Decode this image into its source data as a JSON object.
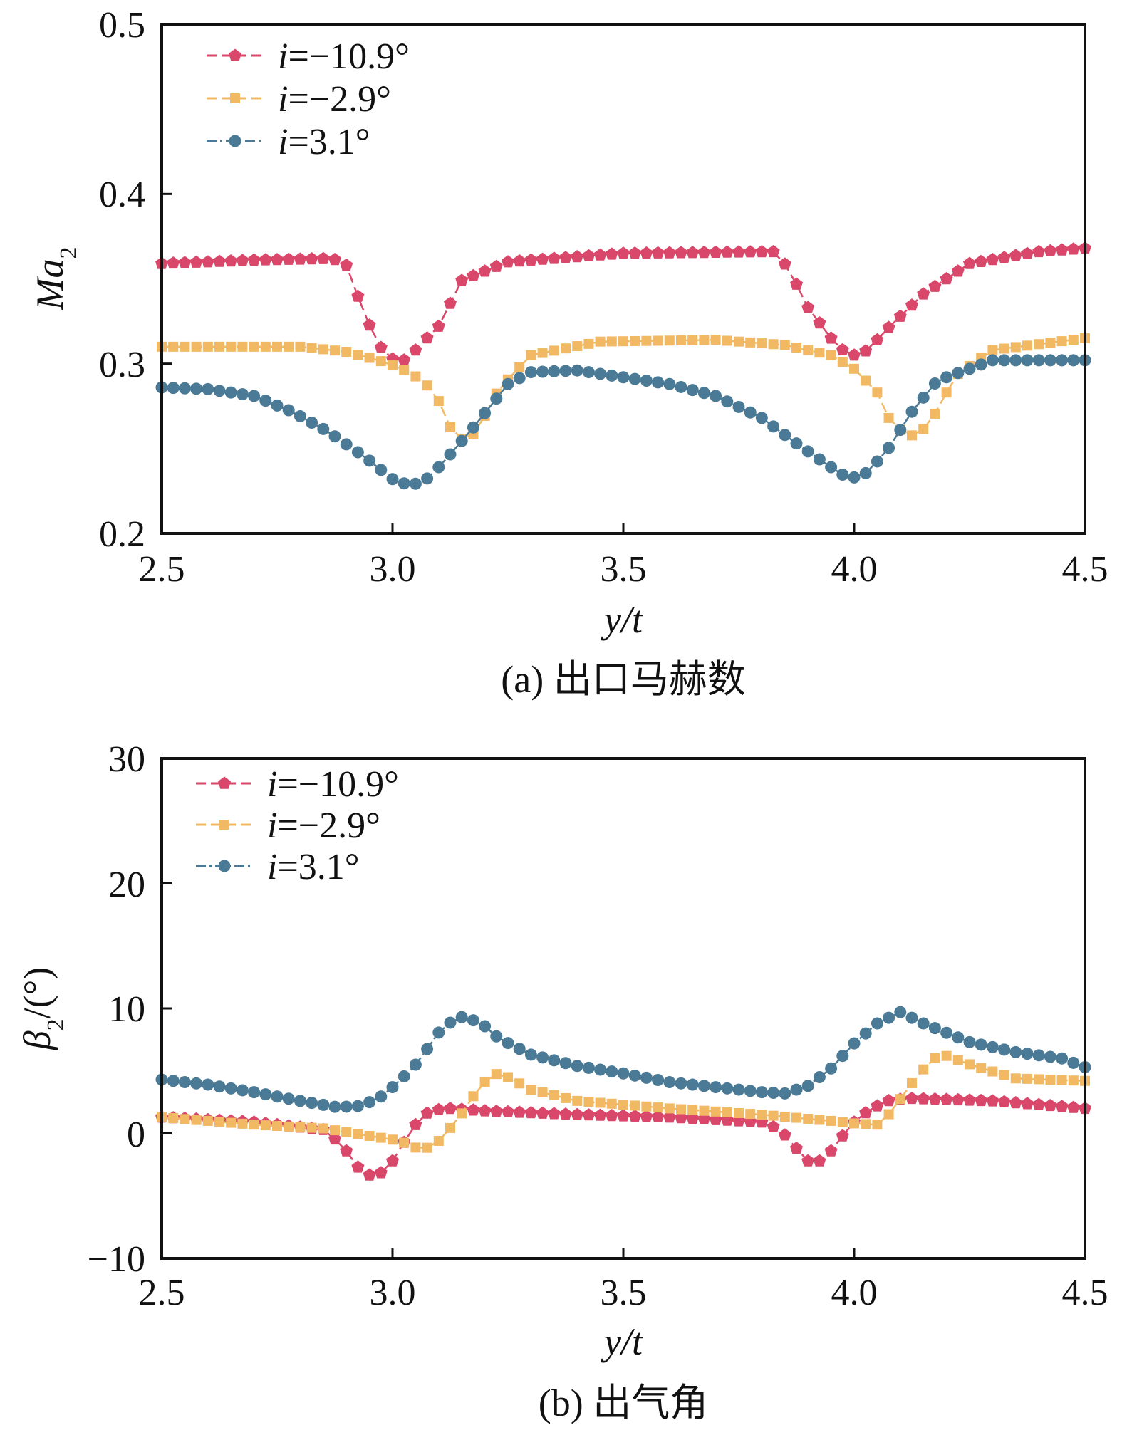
{
  "figure": {
    "series_names": [
      "i=−10.9°",
      "i=−2.9°",
      "i=3.1°"
    ],
    "legend_symbols": {
      "italic_letter": "i",
      "rest": [
        "=−10.9°",
        "=−2.9°",
        "=3.1°"
      ]
    },
    "colors": {
      "s1": "#d9486a",
      "s2": "#f2b965",
      "s3": "#4a7a95"
    }
  },
  "chart_data": [
    {
      "type": "line",
      "caption": "(a) 出口马赫数",
      "xlabel": "y/t",
      "ylabel": {
        "main": "Ma",
        "sub": "2"
      },
      "xlim": [
        2.5,
        4.5
      ],
      "ylim": [
        0.2,
        0.5
      ],
      "xticks": [
        "2.5",
        "3.0",
        "3.5",
        "4.0",
        "4.5"
      ],
      "yticks": [
        "0.2",
        "0.3",
        "0.4",
        "0.5"
      ],
      "legend": "top-left",
      "grid": false,
      "series": [
        {
          "name": "i=−10.9°",
          "marker": "pentagon",
          "points": [
            [
              2.5,
              0.359
            ],
            [
              2.7,
              0.361
            ],
            [
              2.87,
              0.362
            ],
            [
              2.9,
              0.358
            ],
            [
              2.93,
              0.336
            ],
            [
              2.96,
              0.316
            ],
            [
              2.99,
              0.303
            ],
            [
              3.03,
              0.302
            ],
            [
              3.06,
              0.311
            ],
            [
              3.1,
              0.322
            ],
            [
              3.15,
              0.349
            ],
            [
              3.25,
              0.36
            ],
            [
              3.5,
              0.365
            ],
            [
              3.83,
              0.366
            ],
            [
              3.86,
              0.355
            ],
            [
              3.9,
              0.333
            ],
            [
              3.95,
              0.315
            ],
            [
              3.99,
              0.304
            ],
            [
              4.03,
              0.308
            ],
            [
              4.07,
              0.32
            ],
            [
              4.15,
              0.341
            ],
            [
              4.25,
              0.359
            ],
            [
              4.4,
              0.366
            ],
            [
              4.5,
              0.368
            ]
          ]
        },
        {
          "name": "i=−2.9°",
          "marker": "square",
          "points": [
            [
              2.5,
              0.31
            ],
            [
              2.8,
              0.31
            ],
            [
              2.9,
              0.307
            ],
            [
              2.97,
              0.302
            ],
            [
              3.03,
              0.296
            ],
            [
              3.07,
              0.289
            ],
            [
              3.1,
              0.278
            ],
            [
              3.12,
              0.264
            ],
            [
              3.16,
              0.253
            ],
            [
              3.19,
              0.264
            ],
            [
              3.23,
              0.285
            ],
            [
              3.3,
              0.305
            ],
            [
              3.45,
              0.313
            ],
            [
              3.7,
              0.314
            ],
            [
              3.85,
              0.311
            ],
            [
              3.95,
              0.305
            ],
            [
              4.0,
              0.297
            ],
            [
              4.05,
              0.283
            ],
            [
              4.08,
              0.265
            ],
            [
              4.12,
              0.257
            ],
            [
              4.16,
              0.263
            ],
            [
              4.22,
              0.293
            ],
            [
              4.3,
              0.308
            ],
            [
              4.5,
              0.315
            ]
          ]
        },
        {
          "name": "i=3.1°",
          "marker": "circle",
          "points": [
            [
              2.5,
              0.286
            ],
            [
              2.6,
              0.285
            ],
            [
              2.7,
              0.281
            ],
            [
              2.78,
              0.272
            ],
            [
              2.86,
              0.26
            ],
            [
              2.94,
              0.245
            ],
            [
              3.0,
              0.232
            ],
            [
              3.04,
              0.228
            ],
            [
              3.08,
              0.233
            ],
            [
              3.12,
              0.245
            ],
            [
              3.18,
              0.264
            ],
            [
              3.25,
              0.288
            ],
            [
              3.3,
              0.295
            ],
            [
              3.4,
              0.296
            ],
            [
              3.5,
              0.292
            ],
            [
              3.6,
              0.288
            ],
            [
              3.7,
              0.281
            ],
            [
              3.8,
              0.268
            ],
            [
              3.88,
              0.252
            ],
            [
              3.95,
              0.239
            ],
            [
              3.99,
              0.232
            ],
            [
              4.03,
              0.236
            ],
            [
              4.08,
              0.252
            ],
            [
              4.12,
              0.27
            ],
            [
              4.18,
              0.29
            ],
            [
              4.3,
              0.302
            ],
            [
              4.5,
              0.302
            ]
          ]
        }
      ]
    },
    {
      "type": "line",
      "caption": "(b) 出气角",
      "xlabel": "y/t",
      "ylabel": {
        "main": "β",
        "sub": "2",
        "suffix": "/(°)"
      },
      "xlim": [
        2.5,
        4.5
      ],
      "ylim": [
        -10,
        30
      ],
      "xticks": [
        "2.5",
        "3.0",
        "3.5",
        "4.0",
        "4.5"
      ],
      "yticks": [
        "−10",
        "0",
        "10",
        "20",
        "30"
      ],
      "legend": "top-left",
      "grid": false,
      "series": [
        {
          "name": "i=−10.9°",
          "marker": "pentagon",
          "points": [
            [
              2.5,
              1.3
            ],
            [
              2.7,
              0.9
            ],
            [
              2.85,
              0.3
            ],
            [
              2.88,
              -0.6
            ],
            [
              2.91,
              -1.8
            ],
            [
              2.93,
              -3.0
            ],
            [
              2.96,
              -3.5
            ],
            [
              2.99,
              -2.8
            ],
            [
              3.02,
              -1.0
            ],
            [
              3.05,
              0.7
            ],
            [
              3.08,
              1.8
            ],
            [
              3.12,
              2.0
            ],
            [
              3.2,
              1.8
            ],
            [
              3.4,
              1.5
            ],
            [
              3.6,
              1.3
            ],
            [
              3.8,
              0.9
            ],
            [
              3.84,
              0.3
            ],
            [
              3.87,
              -1.0
            ],
            [
              3.9,
              -2.2
            ],
            [
              3.93,
              -2.2
            ],
            [
              3.96,
              -1.0
            ],
            [
              3.99,
              0.6
            ],
            [
              4.03,
              1.8
            ],
            [
              4.07,
              2.6
            ],
            [
              4.12,
              2.8
            ],
            [
              4.3,
              2.6
            ],
            [
              4.5,
              2.0
            ]
          ]
        },
        {
          "name": "i=−2.9°",
          "marker": "square",
          "points": [
            [
              2.5,
              1.3
            ],
            [
              2.7,
              0.7
            ],
            [
              2.85,
              0.4
            ],
            [
              2.95,
              -0.2
            ],
            [
              3.0,
              -0.5
            ],
            [
              3.03,
              -0.8
            ],
            [
              3.06,
              -1.3
            ],
            [
              3.09,
              -1.0
            ],
            [
              3.12,
              0.2
            ],
            [
              3.15,
              1.6
            ],
            [
              3.19,
              3.8
            ],
            [
              3.22,
              4.8
            ],
            [
              3.25,
              4.5
            ],
            [
              3.3,
              3.5
            ],
            [
              3.4,
              2.6
            ],
            [
              3.6,
              2.0
            ],
            [
              3.8,
              1.5
            ],
            [
              3.95,
              1.0
            ],
            [
              4.0,
              0.8
            ],
            [
              4.05,
              0.7
            ],
            [
              4.08,
              1.7
            ],
            [
              4.12,
              3.8
            ],
            [
              4.17,
              6.0
            ],
            [
              4.2,
              6.2
            ],
            [
              4.26,
              5.4
            ],
            [
              4.35,
              4.4
            ],
            [
              4.5,
              4.2
            ]
          ]
        },
        {
          "name": "i=3.1°",
          "marker": "circle",
          "points": [
            [
              2.5,
              4.3
            ],
            [
              2.6,
              3.9
            ],
            [
              2.7,
              3.3
            ],
            [
              2.8,
              2.6
            ],
            [
              2.88,
              2.1
            ],
            [
              2.93,
              2.2
            ],
            [
              2.97,
              2.8
            ],
            [
              3.01,
              4.0
            ],
            [
              3.05,
              5.5
            ],
            [
              3.08,
              7.0
            ],
            [
              3.11,
              8.6
            ],
            [
              3.15,
              9.3
            ],
            [
              3.19,
              8.9
            ],
            [
              3.23,
              7.6
            ],
            [
              3.3,
              6.3
            ],
            [
              3.4,
              5.4
            ],
            [
              3.5,
              4.8
            ],
            [
              3.6,
              4.1
            ],
            [
              3.7,
              3.7
            ],
            [
              3.8,
              3.3
            ],
            [
              3.85,
              3.2
            ],
            [
              3.9,
              3.8
            ],
            [
              3.95,
              5.2
            ],
            [
              4.0,
              7.2
            ],
            [
              4.05,
              8.8
            ],
            [
              4.1,
              9.7
            ],
            [
              4.15,
              8.8
            ],
            [
              4.25,
              7.3
            ],
            [
              4.35,
              6.5
            ],
            [
              4.45,
              6.0
            ],
            [
              4.5,
              5.3
            ]
          ]
        }
      ]
    }
  ]
}
